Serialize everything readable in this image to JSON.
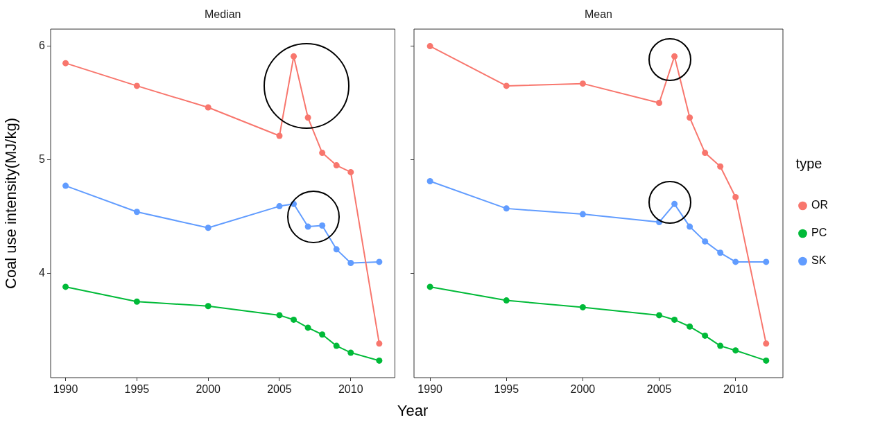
{
  "chart_data": [
    {
      "type": "line",
      "title": "Median",
      "ylabel": "Coal use intensity(MJ/kg)",
      "xlabel": "Year",
      "x": [
        1990,
        1995,
        2000,
        2005,
        2006,
        2007,
        2008,
        2009,
        2010,
        2012
      ],
      "xlim": [
        1988.95,
        2013.1
      ],
      "xticks": [
        1990,
        1995,
        2000,
        2005,
        2010
      ],
      "ylim": [
        3.08,
        6.15
      ],
      "yticks": [
        4,
        5,
        6
      ],
      "marker": "circle",
      "series": [
        {
          "color": "#f8766d",
          "values": [
            5.85,
            5.65,
            5.46,
            5.21,
            5.91,
            5.37,
            5.06,
            4.95,
            4.89,
            3.38
          ]
        },
        {
          "color": "#00ba38",
          "values": [
            3.88,
            3.75,
            3.71,
            3.63,
            3.59,
            3.52,
            3.46,
            3.36,
            3.3,
            3.23
          ]
        },
        {
          "color": "#619cff",
          "values": [
            4.77,
            4.54,
            4.4,
            4.59,
            4.61,
            4.41,
            4.42,
            4.21,
            4.09,
            4.1
          ]
        }
      ]
    },
    {
      "type": "line",
      "title": "Mean",
      "legend": "right",
      "legend_title": "type",
      "tick_labels": "x",
      "x": [
        1990,
        1995,
        2000,
        2005,
        2006,
        2007,
        2008,
        2009,
        2010,
        2012
      ],
      "xlim": [
        1988.95,
        2013.1
      ],
      "xticks": [
        1990,
        1995,
        2000,
        2005,
        2010
      ],
      "ylim": [
        3.08,
        6.15
      ],
      "yticks": [
        4,
        5,
        6
      ],
      "marker": "circle",
      "series": [
        {
          "name": "OR",
          "color": "#f8766d",
          "values": [
            6.0,
            5.65,
            5.67,
            5.5,
            5.91,
            5.37,
            5.06,
            4.94,
            4.67,
            3.38
          ]
        },
        {
          "name": "PC",
          "color": "#00ba38",
          "values": [
            3.88,
            3.76,
            3.7,
            3.63,
            3.59,
            3.53,
            3.45,
            3.36,
            3.32,
            3.23
          ]
        },
        {
          "name": "SK",
          "color": "#619cff",
          "values": [
            4.81,
            4.57,
            4.52,
            4.45,
            4.61,
            4.41,
            4.28,
            4.18,
            4.1,
            4.1
          ]
        }
      ]
    }
  ]
}
